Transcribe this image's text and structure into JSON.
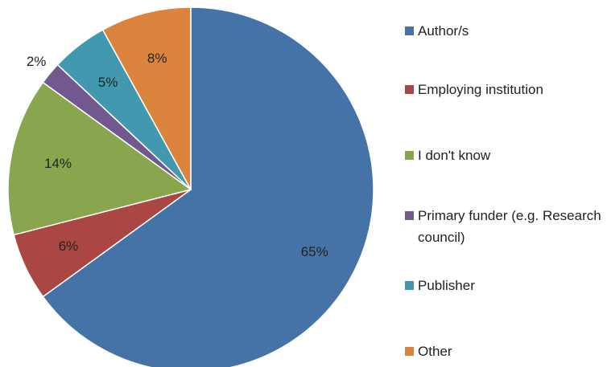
{
  "chart_data": {
    "type": "pie",
    "categories": [
      "Author/s",
      "Employing institution",
      "I don't know",
      "Primary funder (e.g. Research council)",
      "Publisher",
      "Other"
    ],
    "values": [
      65,
      6,
      14,
      2,
      5,
      8
    ],
    "value_labels": [
      "65%",
      "6%",
      "14%",
      "2%",
      "5%",
      "8%"
    ],
    "colors": [
      "#4572a7",
      "#aa4643",
      "#89a54e",
      "#71588f",
      "#4198af",
      "#db843d"
    ],
    "legend": "right"
  }
}
